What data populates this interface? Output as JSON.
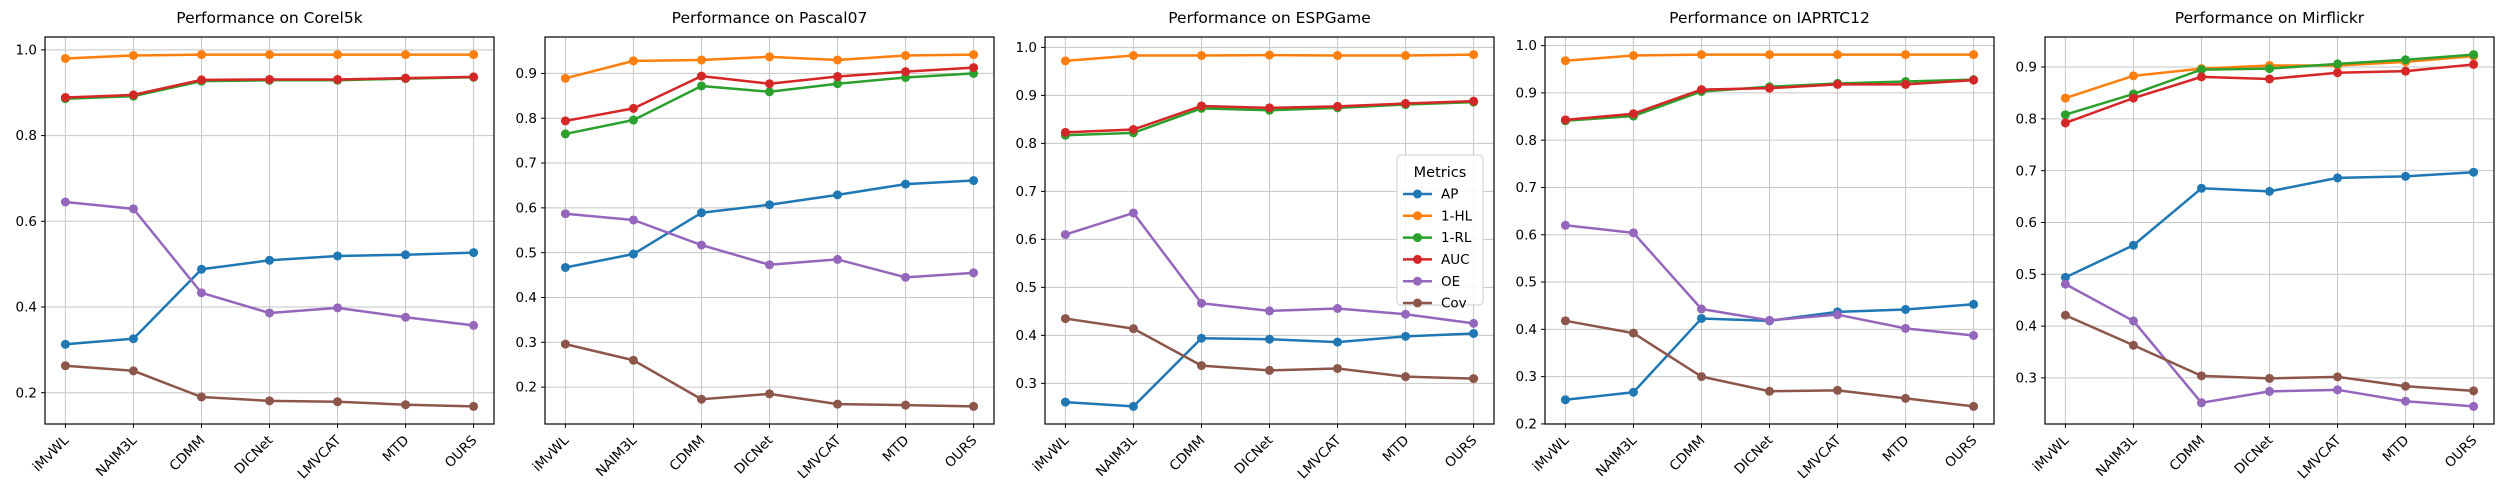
{
  "figure": {
    "background": "#ffffff",
    "grid_color": "#c6c6c6",
    "spine_color": "#000000"
  },
  "legend": {
    "title": "Metrics",
    "location": "center right",
    "shown_on": "Performance on ESPGame",
    "entries": [
      "AP",
      "1-HL",
      "1-RL",
      "AUC",
      "OE",
      "Cov"
    ]
  },
  "chart_data": [
    {
      "type": "line",
      "title": "Performance on Corel5k",
      "xlabel": "",
      "ylabel": "",
      "grid": true,
      "show_legend": false,
      "categories": [
        "iMvWL",
        "NAIM3L",
        "CDMM",
        "DICNet",
        "LMVCAT",
        "MTD",
        "OURS"
      ],
      "yticks": [
        0.2,
        0.4,
        0.6,
        0.8,
        1.0
      ],
      "series": [
        {
          "name": "AP",
          "color": "#1f77b4",
          "values": [
            0.313,
            0.326,
            0.488,
            0.509,
            0.519,
            0.522,
            0.527
          ]
        },
        {
          "name": "1-HL",
          "color": "#ff7f0e",
          "values": [
            0.98,
            0.987,
            0.989,
            0.989,
            0.989,
            0.989,
            0.989
          ]
        },
        {
          "name": "1-RL",
          "color": "#2ca02c",
          "values": [
            0.886,
            0.892,
            0.927,
            0.929,
            0.929,
            0.933,
            0.936
          ]
        },
        {
          "name": "AUC",
          "color": "#d62728",
          "values": [
            0.889,
            0.895,
            0.93,
            0.931,
            0.931,
            0.934,
            0.937
          ]
        },
        {
          "name": "OE",
          "color": "#9467bd",
          "values": [
            0.645,
            0.629,
            0.433,
            0.386,
            0.398,
            0.376,
            0.357
          ]
        },
        {
          "name": "Cov",
          "color": "#8c564b",
          "values": [
            0.263,
            0.251,
            0.19,
            0.181,
            0.179,
            0.172,
            0.168
          ]
        }
      ]
    },
    {
      "type": "line",
      "title": "Performance on Pascal07",
      "xlabel": "",
      "ylabel": "",
      "grid": true,
      "show_legend": false,
      "categories": [
        "iMvWL",
        "NAIM3L",
        "CDMM",
        "DICNet",
        "LMVCAT",
        "MTD",
        "OURS"
      ],
      "yticks": [
        0.2,
        0.3,
        0.4,
        0.5,
        0.6,
        0.7,
        0.8,
        0.9
      ],
      "series": [
        {
          "name": "AP",
          "color": "#1f77b4",
          "values": [
            0.467,
            0.497,
            0.589,
            0.607,
            0.629,
            0.653,
            0.661
          ]
        },
        {
          "name": "1-HL",
          "color": "#ff7f0e",
          "values": [
            0.889,
            0.928,
            0.93,
            0.937,
            0.93,
            0.94,
            0.942
          ]
        },
        {
          "name": "1-RL",
          "color": "#2ca02c",
          "values": [
            0.765,
            0.796,
            0.872,
            0.859,
            0.877,
            0.891,
            0.9
          ]
        },
        {
          "name": "AUC",
          "color": "#d62728",
          "values": [
            0.794,
            0.822,
            0.894,
            0.877,
            0.893,
            0.904,
            0.913
          ]
        },
        {
          "name": "OE",
          "color": "#9467bd",
          "values": [
            0.587,
            0.573,
            0.517,
            0.473,
            0.485,
            0.445,
            0.455
          ]
        },
        {
          "name": "Cov",
          "color": "#8c564b",
          "values": [
            0.296,
            0.26,
            0.173,
            0.185,
            0.162,
            0.16,
            0.157
          ]
        }
      ]
    },
    {
      "type": "line",
      "title": "Performance on ESPGame",
      "xlabel": "",
      "ylabel": "",
      "grid": true,
      "show_legend": true,
      "categories": [
        "iMvWL",
        "NAIM3L",
        "CDMM",
        "DICNet",
        "LMVCAT",
        "MTD",
        "OURS"
      ],
      "yticks": [
        0.3,
        0.4,
        0.5,
        0.6,
        0.7,
        0.8,
        0.9,
        1.0
      ],
      "series": [
        {
          "name": "AP",
          "color": "#1f77b4",
          "values": [
            0.261,
            0.252,
            0.394,
            0.392,
            0.386,
            0.398,
            0.404
          ]
        },
        {
          "name": "1-HL",
          "color": "#ff7f0e",
          "values": [
            0.972,
            0.983,
            0.983,
            0.984,
            0.983,
            0.983,
            0.985
          ]
        },
        {
          "name": "1-RL",
          "color": "#2ca02c",
          "values": [
            0.817,
            0.822,
            0.873,
            0.869,
            0.874,
            0.881,
            0.886
          ]
        },
        {
          "name": "AUC",
          "color": "#d62728",
          "values": [
            0.823,
            0.829,
            0.878,
            0.874,
            0.877,
            0.883,
            0.888
          ]
        },
        {
          "name": "OE",
          "color": "#9467bd",
          "values": [
            0.61,
            0.655,
            0.467,
            0.451,
            0.456,
            0.444,
            0.425
          ]
        },
        {
          "name": "Cov",
          "color": "#8c564b",
          "values": [
            0.435,
            0.414,
            0.337,
            0.327,
            0.331,
            0.314,
            0.31
          ]
        }
      ]
    },
    {
      "type": "line",
      "title": "Performance on IAPRTC12",
      "xlabel": "",
      "ylabel": "",
      "grid": true,
      "show_legend": false,
      "categories": [
        "iMvWL",
        "NAIM3L",
        "CDMM",
        "DICNet",
        "LMVCAT",
        "MTD",
        "OURS"
      ],
      "yticks": [
        0.2,
        0.3,
        0.4,
        0.5,
        0.6,
        0.7,
        0.8,
        0.9,
        1.0
      ],
      "series": [
        {
          "name": "AP",
          "color": "#1f77b4",
          "values": [
            0.251,
            0.267,
            0.423,
            0.418,
            0.437,
            0.442,
            0.453
          ]
        },
        {
          "name": "1-HL",
          "color": "#ff7f0e",
          "values": [
            0.968,
            0.979,
            0.981,
            0.981,
            0.981,
            0.981,
            0.981
          ]
        },
        {
          "name": "1-RL",
          "color": "#2ca02c",
          "values": [
            0.841,
            0.851,
            0.903,
            0.913,
            0.92,
            0.924,
            0.928
          ]
        },
        {
          "name": "AUC",
          "color": "#d62728",
          "values": [
            0.843,
            0.856,
            0.907,
            0.91,
            0.918,
            0.918,
            0.927
          ]
        },
        {
          "name": "OE",
          "color": "#9467bd",
          "values": [
            0.62,
            0.604,
            0.443,
            0.419,
            0.431,
            0.402,
            0.387
          ]
        },
        {
          "name": "Cov",
          "color": "#8c564b",
          "values": [
            0.418,
            0.392,
            0.3,
            0.269,
            0.271,
            0.254,
            0.237
          ]
        }
      ]
    },
    {
      "type": "line",
      "title": "Performance on Mirflickr",
      "xlabel": "",
      "ylabel": "",
      "grid": true,
      "show_legend": false,
      "categories": [
        "iMvWL",
        "NAIM3L",
        "CDMM",
        "DICNet",
        "LMVCAT",
        "MTD",
        "OURS"
      ],
      "yticks": [
        0.3,
        0.4,
        0.5,
        0.6,
        0.7,
        0.8,
        0.9
      ],
      "series": [
        {
          "name": "AP",
          "color": "#1f77b4",
          "values": [
            0.494,
            0.556,
            0.666,
            0.66,
            0.686,
            0.689,
            0.697
          ]
        },
        {
          "name": "1-HL",
          "color": "#ff7f0e",
          "values": [
            0.84,
            0.883,
            0.897,
            0.903,
            0.903,
            0.91,
            0.921
          ]
        },
        {
          "name": "1-RL",
          "color": "#2ca02c",
          "values": [
            0.808,
            0.848,
            0.895,
            0.897,
            0.906,
            0.914,
            0.924
          ]
        },
        {
          "name": "AUC",
          "color": "#d62728",
          "values": [
            0.792,
            0.84,
            0.881,
            0.877,
            0.889,
            0.892,
            0.905
          ]
        },
        {
          "name": "OE",
          "color": "#9467bd",
          "values": [
            0.481,
            0.41,
            0.252,
            0.274,
            0.277,
            0.255,
            0.245
          ]
        },
        {
          "name": "Cov",
          "color": "#8c564b",
          "values": [
            0.421,
            0.363,
            0.304,
            0.299,
            0.302,
            0.284,
            0.275
          ]
        }
      ]
    }
  ]
}
